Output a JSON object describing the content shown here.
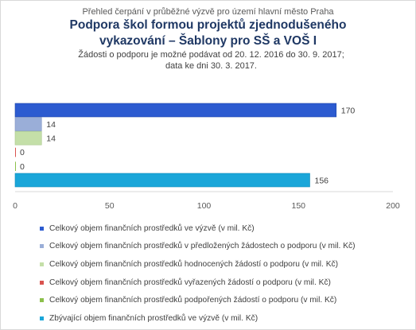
{
  "header": {
    "pretitle": "Přehled čerpání v průběžné výzvě pro území hlavní město Praha",
    "title_line1": "Podpora škol formou projektů zjednodušeného",
    "title_line2": "vykazování – Šablony pro SŠ a VOŠ I",
    "subtitle_line1": "Žádosti o podporu je možné podávat od 20. 12. 2016 do 30. 9. 2017;",
    "subtitle_line2": "data ke dni 30. 3. 2017."
  },
  "chart_data": {
    "type": "bar",
    "orientation": "horizontal",
    "xlim": [
      0,
      200
    ],
    "xticks": [
      "0",
      "50",
      "100",
      "150",
      "200"
    ],
    "grid": false,
    "legend_position": "bottom",
    "series": [
      {
        "name": "Celkový objem finančních prostředků ve výzvě (v mil. Kč)",
        "value": 170,
        "label": "170",
        "color": "#2c5bd0",
        "edge": "#1f46a8"
      },
      {
        "name": "Celkový objem finančních prostředků v předložených žádostech o podporu (v mil. Kč)",
        "value": 14,
        "label": "14",
        "color": "#9aaed8",
        "edge": "#7f94c2"
      },
      {
        "name": "Celkový objem finančních prostředků hodnocených žádostí o podporu (v mil. Kč)",
        "value": 14,
        "label": "14",
        "color": "#c4dfa8",
        "edge": "#a9c78b"
      },
      {
        "name": "Celkový objem finančních prostředků vyřazených žádostí o podporu (v mil. Kč)",
        "value": 0,
        "label": "0",
        "color": "#d9534f",
        "edge": "#b83c38"
      },
      {
        "name": "Celkový objem finančních prostředků podpořených žádostí o podporu (v mil. Kč)",
        "value": 0,
        "label": "0",
        "color": "#8cc04b",
        "edge": "#6fa031"
      },
      {
        "name": "Zbývající objem finančních prostředků ve výzvě (v mil. Kč)",
        "value": 156,
        "label": "156",
        "color": "#1aa6d9",
        "edge": "#128ab8"
      }
    ]
  }
}
